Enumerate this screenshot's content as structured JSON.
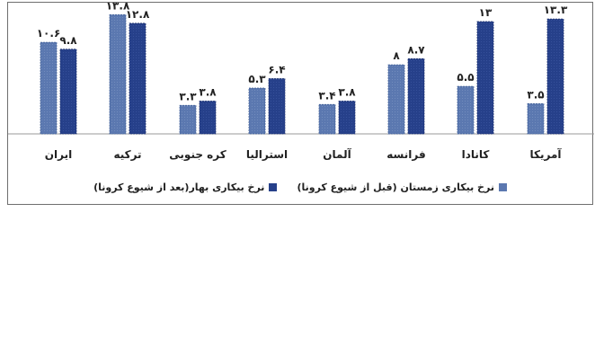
{
  "chart_data": {
    "type": "bar",
    "categories": [
      "آمریکا",
      "کانادا",
      "فرانسه",
      "آلمان",
      "استرالیا",
      "کره جنوبی",
      "ترکیه",
      "ایران"
    ],
    "series": [
      {
        "name": "نرخ بیکاری زمستان (قبل از شیوع کرونا)",
        "color": "#5b78b0",
        "values": [
          3.5,
          5.5,
          8,
          3.4,
          5.3,
          3.3,
          13.8,
          10.6
        ],
        "labels": [
          "۳.۵",
          "۵.۵",
          "۸",
          "۳.۴",
          "۵.۳",
          "۳.۳",
          "۱۳.۸",
          "۱۰.۶"
        ]
      },
      {
        "name": "نرخ بیکاری بهار(بعد از شیوع کرونا)",
        "color": "#26408a",
        "values": [
          13.3,
          13,
          8.7,
          3.8,
          6.4,
          3.8,
          12.8,
          9.8
        ],
        "labels": [
          "۱۳.۳",
          "۱۳",
          "۸.۷",
          "۳.۸",
          "۶.۴",
          "۳.۸",
          "۱۲.۸",
          "۹.۸"
        ]
      }
    ],
    "category_order": "right-to-left",
    "ylim": [
      0,
      14
    ],
    "grid": false,
    "legend_position": "bottom"
  }
}
